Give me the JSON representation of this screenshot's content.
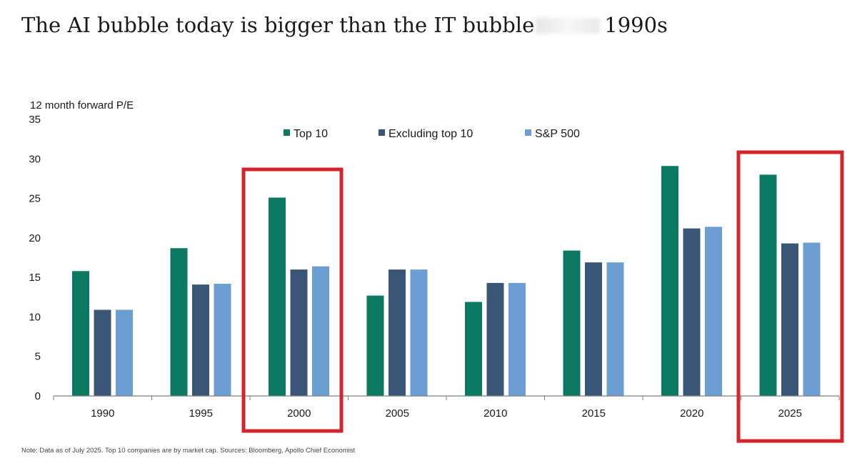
{
  "title_before": "The AI bubble today is bigger than the IT bubble",
  "title_after": "1990s",
  "note": "Note: Data as of July 2025. Top 10 companies are by market cap. Sources: Bloomberg, Apollo Chief Economist",
  "chart_data": {
    "type": "bar",
    "ylabel": "12 month forward P/E",
    "ylim": [
      0,
      35
    ],
    "yticks": [
      0,
      5,
      10,
      15,
      20,
      25,
      30,
      35
    ],
    "categories": [
      "1990",
      "1995",
      "2000",
      "2005",
      "2010",
      "2015",
      "2020",
      "2025"
    ],
    "series": [
      {
        "name": "Top 10",
        "color": "#0c7a61",
        "values": [
          15.8,
          18.7,
          25.1,
          12.7,
          11.9,
          18.4,
          29.1,
          28.0
        ]
      },
      {
        "name": "Excluding top 10",
        "color": "#395677",
        "values": [
          10.9,
          14.1,
          16.0,
          16.0,
          14.3,
          16.9,
          21.2,
          19.3
        ]
      },
      {
        "name": "S&P 500",
        "color": "#6b9fd3",
        "values": [
          10.9,
          14.2,
          16.4,
          16.0,
          14.3,
          16.9,
          21.4,
          19.4
        ]
      }
    ],
    "legend_position": "top-center",
    "highlighted_categories": [
      "2000",
      "2025"
    ],
    "highlight_color": "#d3252b"
  }
}
